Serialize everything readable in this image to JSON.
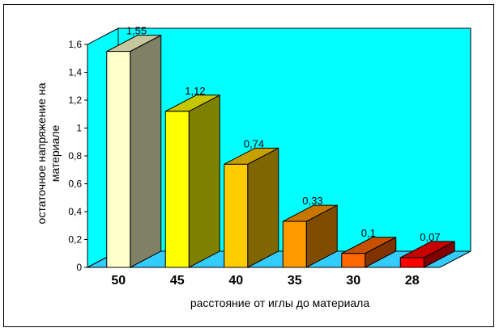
{
  "chart_data": {
    "type": "bar",
    "title": "",
    "categories": [
      "50",
      "45",
      "40",
      "35",
      "30",
      "28"
    ],
    "values": [
      1.55,
      1.12,
      0.74,
      0.33,
      0.1,
      0.07
    ],
    "data_labels": [
      "1,55",
      "1,12",
      "0,74",
      "0,33",
      "0,1",
      "0,07"
    ],
    "xlabel": "расстояние от иглы до материала",
    "ylabel_lines": [
      "остаточное напряжение на",
      "материале"
    ],
    "ylim": [
      0,
      1.6
    ],
    "y_ticks": [
      "0",
      "0,2",
      "0,4",
      "0,6",
      "0,8",
      "1",
      "1,2",
      "1,4",
      "1,6"
    ],
    "grid": false,
    "legend": "none",
    "three_d": true,
    "colors": {
      "background": "#00FFFF",
      "floor": "#33CCFF",
      "bars": [
        "#FFFFCC",
        "#FFFF00",
        "#FFCC00",
        "#FF9900",
        "#FF6600",
        "#FF0000"
      ]
    }
  }
}
